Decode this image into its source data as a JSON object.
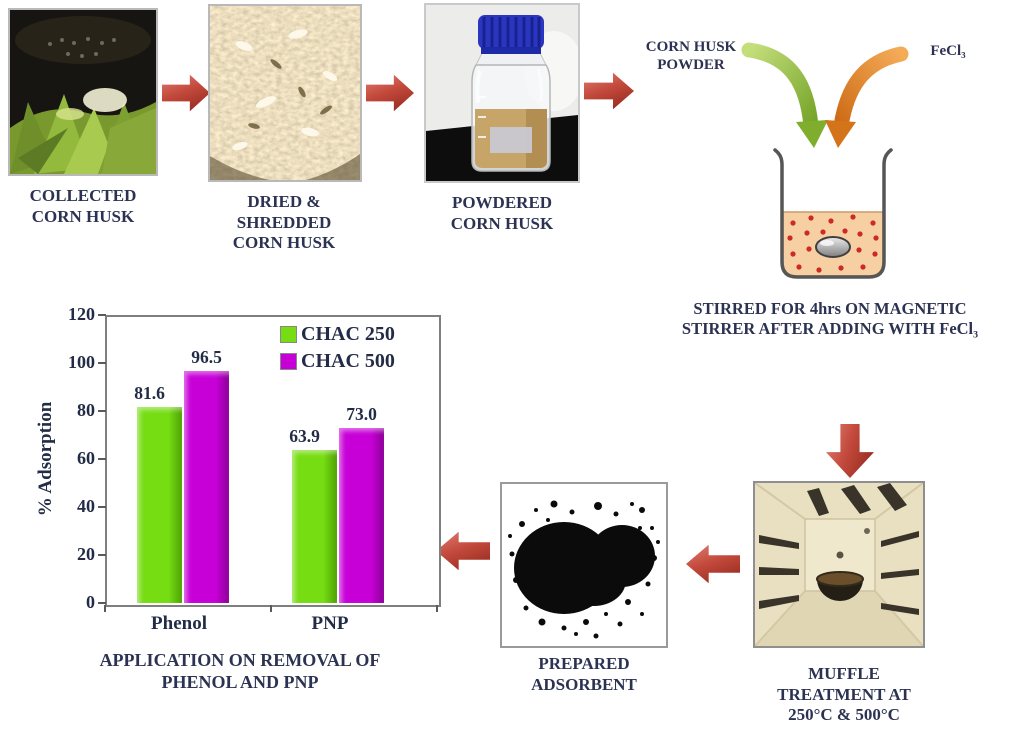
{
  "figure": {
    "step1_label": "COLLECTED\nCORN HUSK",
    "step2_label": "DRIED &\nSHREDDED\nCORN HUSK",
    "step3_label": "POWDERED\nCORN HUSK",
    "mix_left_label": "CORN HUSK\nPOWDER",
    "mix_right_label": "FeCl₃",
    "stir_caption": "STIRRED FOR 4hrs ON MAGNETIC\nSTIRRER AFTER ADDING WITH FeCl₃",
    "furnace_label": "MUFFLE\nTREATMENT AT\n250°C & 500°C",
    "adsorbent_label": "PREPARED\nADSORBENT",
    "chart_caption": "APPLICATION ON REMOVAL OF\nPHENOL AND PNP"
  },
  "colors": {
    "flow_arrow_red": "#c34a3c",
    "mix_arrow_green": "#8cbb3a",
    "mix_arrow_orange": "#e08a2e",
    "beaker_liquid": "#f6cfa3",
    "label_text": "#2c3352"
  },
  "chart_data": {
    "type": "bar",
    "categories": [
      "Phenol",
      "PNP"
    ],
    "series": [
      {
        "name": "CHAC 250",
        "color": "#76dd13",
        "color_dark": "#4ea203",
        "values": [
          81.6,
          63.9
        ]
      },
      {
        "name": "CHAC 500",
        "color": "#c800d8",
        "color_dark": "#8d0099",
        "values": [
          96.5,
          73.0
        ]
      }
    ],
    "data_labels": [
      [
        "81.6",
        "63.9"
      ],
      [
        "96.5",
        "73.0"
      ]
    ],
    "title": "",
    "xlabel": "",
    "ylabel": "% Adsorption",
    "ylim": [
      0,
      120
    ],
    "yticks": [
      0,
      20,
      40,
      60,
      80,
      100,
      120
    ],
    "grid": false,
    "legend_position": "top-right"
  }
}
